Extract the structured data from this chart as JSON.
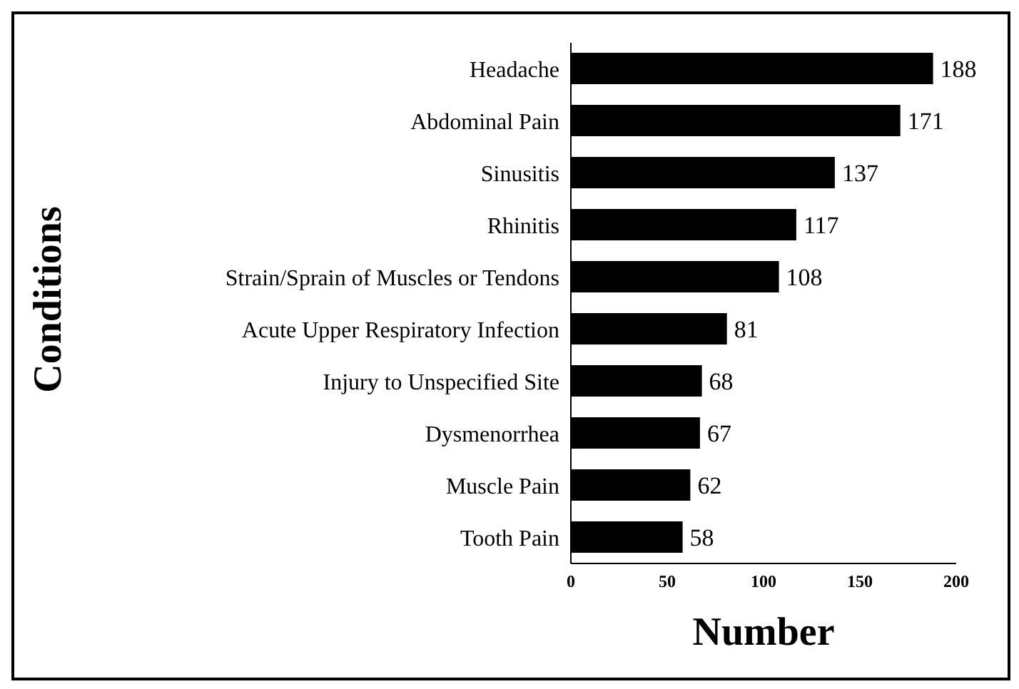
{
  "chart_data": {
    "type": "bar",
    "orientation": "horizontal",
    "xlabel": "Number",
    "ylabel": "Conditions",
    "categories": [
      "Headache",
      "Abdominal Pain",
      "Sinusitis",
      "Rhinitis",
      "Strain/Sprain of Muscles or Tendons",
      "Acute Upper Respiratory Infection",
      "Injury to Unspecified Site",
      "Dysmenorrhea",
      "Muscle Pain",
      "Tooth Pain"
    ],
    "values": [
      188,
      171,
      137,
      117,
      108,
      81,
      68,
      67,
      62,
      58
    ],
    "color": "#000000",
    "xlim": [
      0,
      200
    ],
    "xticks": [
      0,
      50,
      100,
      150,
      200
    ],
    "data_labels": true,
    "grid": false,
    "legend": false
  }
}
